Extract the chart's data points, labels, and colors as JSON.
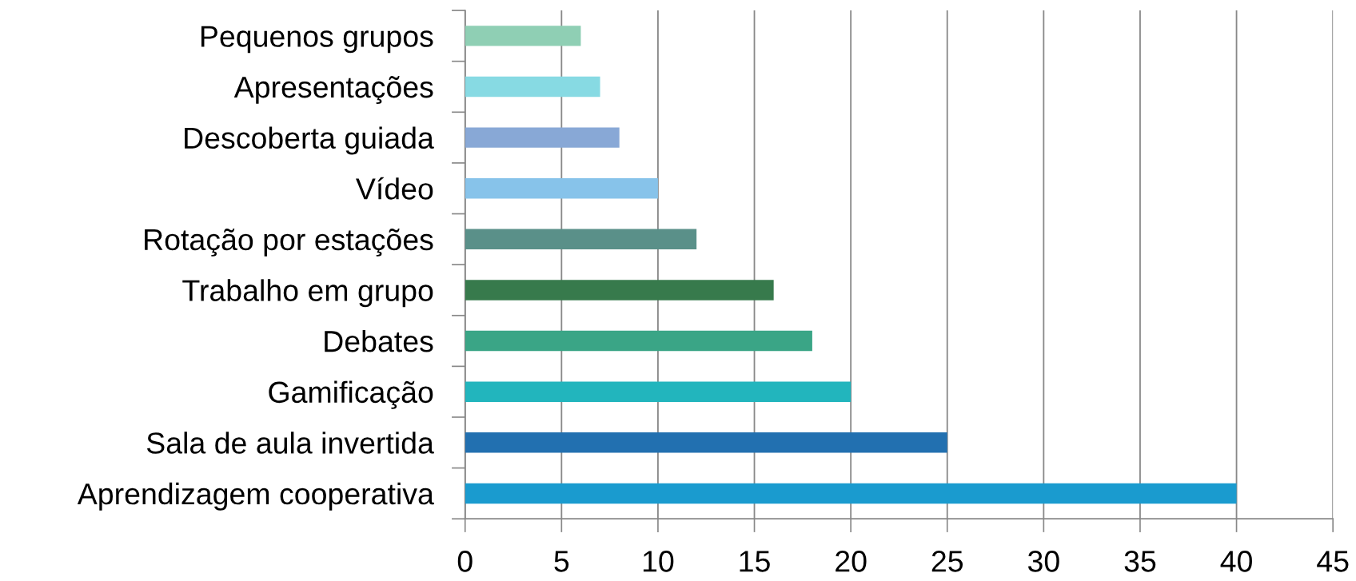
{
  "chart_data": {
    "type": "bar",
    "orientation": "horizontal",
    "categories": [
      "Pequenos grupos",
      "Apresentações",
      "Descoberta guiada",
      "Vídeo",
      "Rotação por estações",
      "Trabalho em grupo",
      "Debates",
      "Gamificação",
      "Sala de aula invertida",
      "Aprendizagem cooperativa"
    ],
    "values": [
      6,
      7,
      8,
      10,
      12,
      16,
      18,
      20,
      25,
      40
    ],
    "colors": [
      "#8fcfb4",
      "#87dae3",
      "#88a8d6",
      "#87c3ea",
      "#5a9089",
      "#377a4c",
      "#3aa586",
      "#22b5bd",
      "#2270b0",
      "#1a9bcf"
    ],
    "xlim": [
      0,
      45
    ],
    "xticks": [
      0,
      5,
      10,
      15,
      20,
      25,
      30,
      35,
      40,
      45
    ],
    "grid": "x"
  }
}
